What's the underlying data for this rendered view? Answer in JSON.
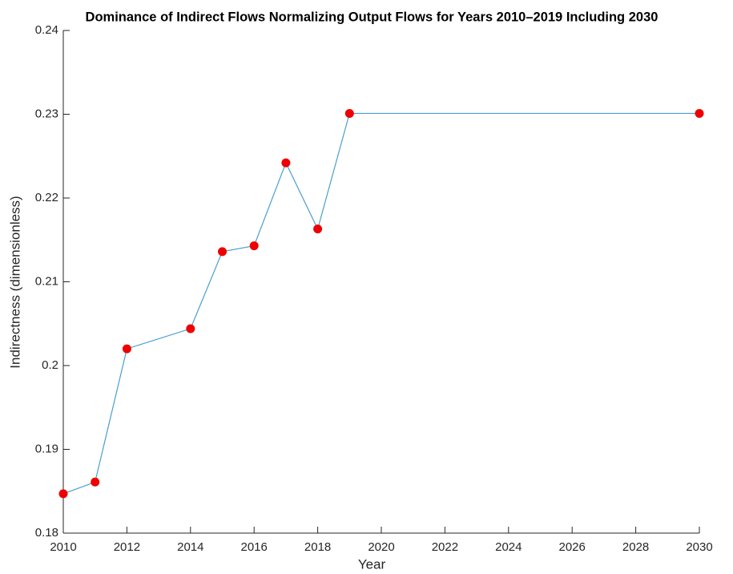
{
  "chart_data": {
    "type": "line",
    "title": "Dominance of Indirect Flows Normalizing Output Flows for Years 2010–2019 Including 2030",
    "x_label": "Year",
    "y_label": "Indirectness (dimensionless)",
    "x": [
      2010,
      2011,
      2012,
      2014,
      2015,
      2016,
      2017,
      2018,
      2019,
      2030
    ],
    "values": [
      0.1847,
      0.1861,
      0.202,
      0.2044,
      0.2136,
      0.2143,
      0.2242,
      0.2163,
      0.2301,
      0.2301
    ],
    "color": "#4a9fd0",
    "marker_color": "#ee0000",
    "xlim": [
      2010,
      2030
    ],
    "xticks": [
      2010,
      2012,
      2014,
      2016,
      2018,
      2020,
      2022,
      2024,
      2026,
      2028,
      2030
    ],
    "ylim": [
      0.18,
      0.24
    ],
    "yticks": [
      0.18,
      0.19,
      0.2,
      0.21,
      0.22,
      0.23,
      0.24
    ]
  }
}
